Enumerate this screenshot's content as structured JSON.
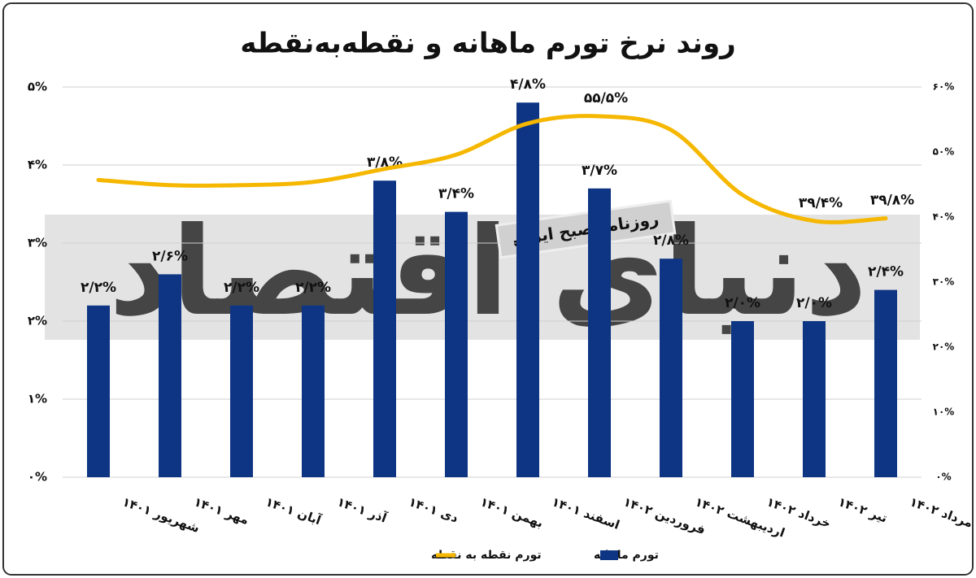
{
  "chart_data": {
    "type": "bar-line",
    "title": "روند نرخ تورم ماهانه و نقطه‌به‌نقطه",
    "watermark": "روزنامه صبح ایران",
    "watermark_logo": "دنیای اقتصاد",
    "categories": [
      "شهریور ۱۴۰۱",
      "مهر ۱۴۰۱",
      "آبان ۱۴۰۱",
      "آذر ۱۴۰۱",
      "دی ۱۴۰۱",
      "بهمن ۱۴۰۱",
      "اسفند ۱۴۰۱",
      "فروردین ۱۴۰۲",
      "اردیبهشت ۱۴۰۲",
      "خرداد ۱۴۰۲",
      "تیر ۱۴۰۲",
      "مرداد ۱۴۰۲"
    ],
    "series": [
      {
        "name": "تورم ماهانه",
        "type": "bar",
        "color": "#0e3583",
        "values": [
          2.2,
          2.6,
          2.2,
          2.2,
          3.8,
          3.4,
          4.8,
          3.7,
          2.8,
          2.0,
          2.0,
          2.4
        ],
        "value_labels": [
          "۲/۲%",
          "۲/۶%",
          "۲/۲%",
          "۲/۲%",
          "۳/۸%",
          "۳/۴%",
          "۴/۸%",
          "۳/۷%",
          "۲/۸%",
          "۲/۰%",
          "۲/۰%",
          "۲/۴%"
        ]
      },
      {
        "name": "تورم نقطه به نقطه",
        "type": "line",
        "axis": "y2",
        "color": "#f5b700",
        "values": [
          45.7,
          44.9,
          44.9,
          45.4,
          47.4,
          49.6,
          54.4,
          55.5,
          53.4,
          43.4,
          39.4,
          39.8
        ],
        "value_labels": [
          null,
          null,
          null,
          null,
          null,
          null,
          null,
          "۵۵/۵%",
          null,
          null,
          "۳۹/۴%",
          "۳۹/۸%"
        ]
      }
    ],
    "ylim": [
      0,
      5
    ],
    "yticks": [
      {
        "value": 0,
        "label": "۰%"
      },
      {
        "value": 1,
        "label": "۱%"
      },
      {
        "value": 2,
        "label": "۲%"
      },
      {
        "value": 3,
        "label": "۳%"
      },
      {
        "value": 4,
        "label": "۴%"
      },
      {
        "value": 5,
        "label": "۵%"
      }
    ],
    "y2lim": [
      0,
      60
    ],
    "y2ticks": [
      {
        "value": 0,
        "label": "۰%"
      },
      {
        "value": 10,
        "label": "۱۰%"
      },
      {
        "value": 20,
        "label": "۲۰%"
      },
      {
        "value": 30,
        "label": "۳۰%"
      },
      {
        "value": 40,
        "label": "۴۰%"
      },
      {
        "value": 50,
        "label": "۵۰%"
      },
      {
        "value": 60,
        "label": "۶۰%"
      }
    ],
    "grid": true
  }
}
